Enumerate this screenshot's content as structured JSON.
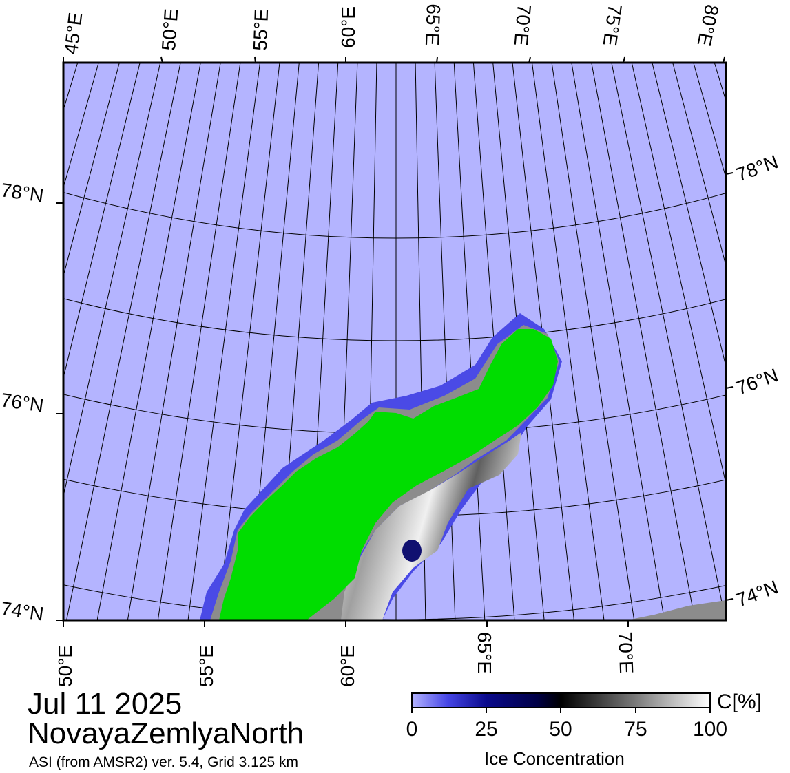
{
  "map": {
    "date": "Jul 11 2025",
    "region": "NovayaZemlyaNorth",
    "source": "ASI (from AMSR2) ver. 5.4,  Grid 3.125 km",
    "top_lon_labels": [
      "45°E",
      "50°E",
      "55°E",
      "60°E",
      "65°E",
      "70°E",
      "75°E",
      "80°E"
    ],
    "bottom_lon_labels": [
      "50°E",
      "55°E",
      "60°E",
      "65°E",
      "70°E"
    ],
    "left_lat_labels": [
      "78°N",
      "76°N",
      "74°N"
    ],
    "right_lat_labels": [
      "78°N",
      "76°N",
      "74°N"
    ],
    "colors": {
      "open_water": "#b4b4ff",
      "land": "#00dd00",
      "coast_mask": "#8c8c8c",
      "ice_low": "#3c3cdc",
      "ice_mid": "#000050",
      "ice_high": "#ffffff"
    }
  },
  "colorbar": {
    "unit": "C[%]",
    "title": "Ice Concentration",
    "ticks": [
      "0",
      "25",
      "50",
      "75",
      "100"
    ],
    "min": 0,
    "max": 100
  }
}
